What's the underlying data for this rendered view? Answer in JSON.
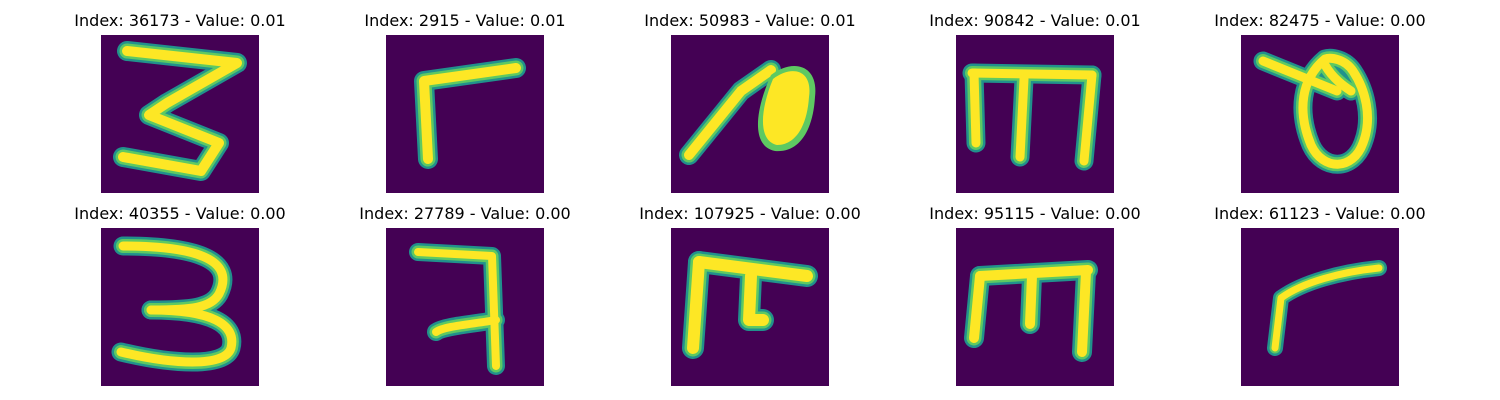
{
  "colors": {
    "background": "#440154",
    "stroke_outer": "#21918c",
    "stroke_mid": "#5ec962",
    "stroke_core": "#fde725"
  },
  "panels": [
    {
      "title": "Index: 36173 - Value: 0.01",
      "glyph": "three-open"
    },
    {
      "title": "Index: 2915 - Value: 0.01",
      "glyph": "gamma-stroke"
    },
    {
      "title": "Index: 50983 - Value: 0.01",
      "glyph": "leaf-stroke"
    },
    {
      "title": "Index: 90842 - Value: 0.01",
      "glyph": "m-trident"
    },
    {
      "title": "Index: 82475 - Value: 0.00",
      "glyph": "loop-hook"
    },
    {
      "title": "Index: 40355 - Value: 0.00",
      "glyph": "three-closed"
    },
    {
      "title": "Index: 27789 - Value: 0.00",
      "glyph": "seven-fork"
    },
    {
      "title": "Index: 107925 - Value: 0.00",
      "glyph": "tee-hook"
    },
    {
      "title": "Index: 95115 - Value: 0.00",
      "glyph": "m-box"
    },
    {
      "title": "Index: 61123 - Value: 0.00",
      "glyph": "gamma-thin"
    }
  ]
}
